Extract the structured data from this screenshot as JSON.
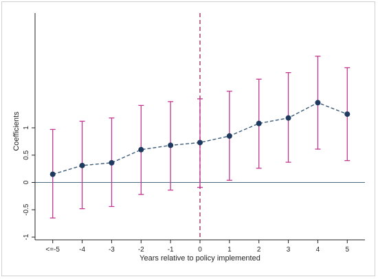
{
  "chart_data": {
    "type": "scatter",
    "xlabel": "Years relative to policy implemented",
    "ylabel": "Coefficients",
    "x_tick_labels": [
      "<=-5",
      "-4",
      "-3",
      "-2",
      "-1",
      "0",
      "1",
      "2",
      "3",
      "4",
      "5"
    ],
    "y_ticks": [
      -1,
      -0.5,
      0,
      0.5,
      1
    ],
    "y_tick_labels": [
      "-1",
      "-0.5",
      "0",
      "0.5",
      "1"
    ],
    "xlim": [
      -5.6,
      5.6
    ],
    "ylim": [
      -1.05,
      3.1
    ],
    "grid": false,
    "reference_line_y": 0,
    "event_line_x": 0,
    "colors": {
      "point": "#1f3a5f",
      "connector": "#3a5a7a",
      "ci": "#c2368f",
      "event_line": "#a03060",
      "zero_line": "#4a6a80",
      "axis": "#222222"
    },
    "series": [
      {
        "x": [
          -5,
          -4,
          -3,
          -2,
          -1,
          0,
          1,
          2,
          3,
          4,
          5
        ],
        "values": [
          0.15,
          0.31,
          0.36,
          0.6,
          0.68,
          0.73,
          0.85,
          1.08,
          1.18,
          1.46,
          1.25
        ],
        "ci_low": [
          -0.65,
          -0.48,
          -0.44,
          -0.22,
          -0.14,
          -0.09,
          0.04,
          0.26,
          0.37,
          0.61,
          0.4
        ],
        "ci_high": [
          0.97,
          1.12,
          1.18,
          1.41,
          1.48,
          1.53,
          1.67,
          1.89,
          2.01,
          2.31,
          2.1
        ]
      }
    ]
  }
}
